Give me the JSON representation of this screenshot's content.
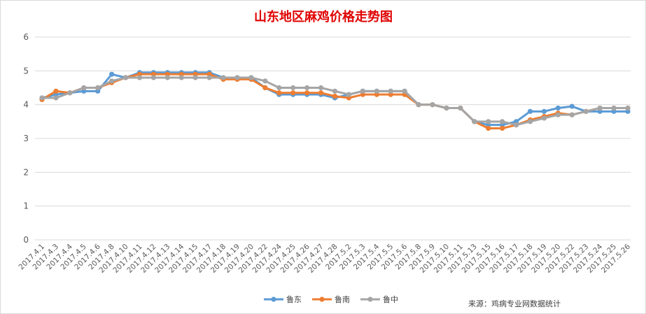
{
  "chart_data": {
    "type": "line",
    "title": "山东地区麻鸡价格走势图",
    "ylim": [
      0,
      6
    ],
    "yticks": [
      0,
      1,
      2,
      3,
      4,
      5,
      6
    ],
    "grid": true,
    "legend_position": "bottom",
    "categories": [
      "2017.4.1",
      "2017.4.3",
      "2017.4.4",
      "2017.4.5",
      "2017.4.6",
      "2017.4.8",
      "2017.4.10",
      "2017.4.11",
      "2017.4.12",
      "2017.4.13",
      "2017.4.14",
      "2017.4.15",
      "2017.4.17",
      "2017.4.18",
      "2017.4.19",
      "2017.4.20",
      "2017.4.22",
      "2017.4.24",
      "2017.4.25",
      "2017.4.26",
      "2017.4.27",
      "2017.4.28",
      "2017.5.2",
      "2017.5.3",
      "2017.5.4",
      "2017.5.5",
      "2017.5.6",
      "2017.5.8",
      "2017.5.9",
      "2017.5.10",
      "2017.5.11",
      "2017.5.13",
      "2017.5.15",
      "2017.5.16",
      "2017.5.17",
      "2017.5.18",
      "2017.5.19",
      "2017.5.20",
      "2017.5.22",
      "2017.5.23",
      "2017.5.24",
      "2017.5.25",
      "2017.5.26"
    ],
    "series": [
      {
        "name": "鲁东",
        "color": "#5b9bd5",
        "values": [
          4.2,
          4.3,
          4.35,
          4.4,
          4.4,
          4.9,
          4.8,
          4.95,
          4.95,
          4.95,
          4.95,
          4.95,
          4.95,
          4.8,
          4.8,
          4.8,
          4.5,
          4.3,
          4.3,
          4.3,
          4.3,
          4.2,
          4.3,
          4.4,
          4.4,
          4.4,
          4.4,
          4.0,
          4.0,
          3.9,
          3.9,
          3.5,
          3.4,
          3.4,
          3.5,
          3.8,
          3.8,
          3.9,
          3.95,
          3.8,
          3.8,
          3.8,
          3.8
        ]
      },
      {
        "name": "鲁南",
        "color": "#ed7d31",
        "values": [
          4.15,
          4.4,
          4.35,
          4.5,
          4.5,
          4.65,
          4.8,
          4.9,
          4.9,
          4.9,
          4.9,
          4.9,
          4.9,
          4.75,
          4.75,
          4.75,
          4.5,
          4.35,
          4.35,
          4.35,
          4.35,
          4.25,
          4.2,
          4.3,
          4.3,
          4.3,
          4.3,
          4.0,
          4.0,
          3.9,
          3.9,
          3.5,
          3.3,
          3.3,
          3.4,
          3.55,
          3.65,
          3.75,
          3.7,
          3.8,
          3.9,
          3.9,
          3.9
        ]
      },
      {
        "name": "鲁中",
        "color": "#a5a5a5",
        "values": [
          4.2,
          4.2,
          4.35,
          4.5,
          4.5,
          4.7,
          4.8,
          4.8,
          4.8,
          4.8,
          4.8,
          4.8,
          4.8,
          4.8,
          4.8,
          4.8,
          4.7,
          4.5,
          4.5,
          4.5,
          4.5,
          4.4,
          4.3,
          4.4,
          4.4,
          4.4,
          4.4,
          4.0,
          4.0,
          3.9,
          3.9,
          3.5,
          3.5,
          3.5,
          3.4,
          3.5,
          3.6,
          3.7,
          3.7,
          3.8,
          3.9,
          3.9,
          3.9
        ]
      }
    ],
    "source": "来源：鸡病专业网数据统计"
  }
}
